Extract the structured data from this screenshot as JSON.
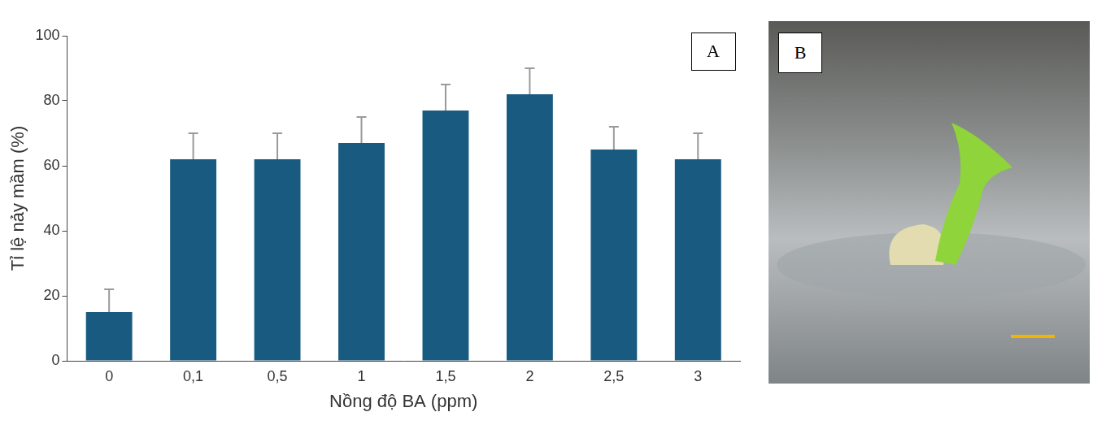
{
  "chart_data": {
    "type": "bar",
    "x_label": "Nồng độ BA (ppm)",
    "y_label": "Tỉ lệ nảy mầm (%)",
    "categories": [
      "0",
      "0,1",
      "0,5",
      "1",
      "1,5",
      "2",
      "2,5",
      "3"
    ],
    "values": [
      15,
      62,
      62,
      67,
      77,
      82,
      65,
      62
    ],
    "errors": [
      7,
      8,
      8,
      8,
      8,
      8,
      7,
      8
    ],
    "color": "#195b80",
    "ylim": [
      0,
      100
    ],
    "yticks": [
      0,
      20,
      40,
      60,
      80,
      100
    ],
    "grid": false
  },
  "panel_labels": [
    "A",
    "B"
  ]
}
